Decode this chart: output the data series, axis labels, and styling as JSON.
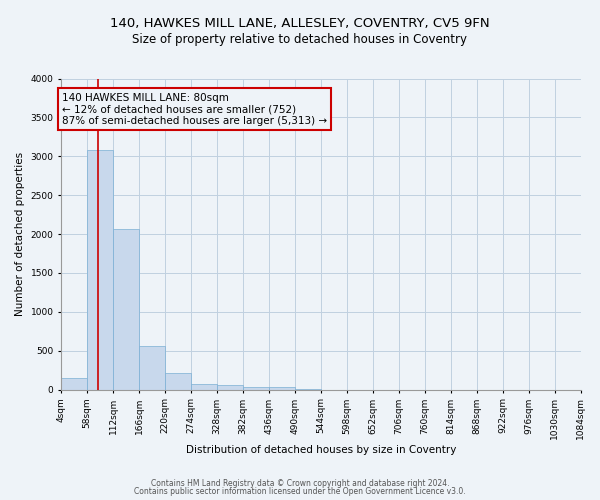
{
  "title_line1": "140, HAWKES MILL LANE, ALLESLEY, COVENTRY, CV5 9FN",
  "title_line2": "Size of property relative to detached houses in Coventry",
  "xlabel": "Distribution of detached houses by size in Coventry",
  "ylabel": "Number of detached properties",
  "bin_edges": [
    4,
    58,
    112,
    166,
    220,
    274,
    328,
    382,
    436,
    490,
    544,
    598,
    652,
    706,
    760,
    814,
    868,
    922,
    976,
    1030,
    1084
  ],
  "bar_heights": [
    150,
    3080,
    2060,
    560,
    220,
    75,
    55,
    40,
    40,
    5,
    2,
    1,
    1,
    1,
    0,
    0,
    0,
    0,
    0,
    0
  ],
  "bar_color": "#c8d8ec",
  "bar_edgecolor": "#7aafd4",
  "property_line_x": 80,
  "property_line_color": "#cc0000",
  "annotation_line1": "140 HAWKES MILL LANE: 80sqm",
  "annotation_line2": "← 12% of detached houses are smaller (752)",
  "annotation_line3": "87% of semi-detached houses are larger (5,313) →",
  "annotation_box_color": "#cc0000",
  "annotation_text_color": "#000000",
  "ylim": [
    0,
    4000
  ],
  "yticks": [
    0,
    500,
    1000,
    1500,
    2000,
    2500,
    3000,
    3500,
    4000
  ],
  "footer_line1": "Contains HM Land Registry data © Crown copyright and database right 2024.",
  "footer_line2": "Contains public sector information licensed under the Open Government Licence v3.0.",
  "background_color": "#eef3f8",
  "plot_bg_color": "#eef3f8",
  "grid_color": "#c0d0e0",
  "title_fontsize": 9.5,
  "subtitle_fontsize": 8.5,
  "tick_fontsize": 6.5,
  "ylabel_fontsize": 7.5,
  "xlabel_fontsize": 7.5,
  "footer_fontsize": 5.5,
  "annotation_fontsize": 7.5
}
